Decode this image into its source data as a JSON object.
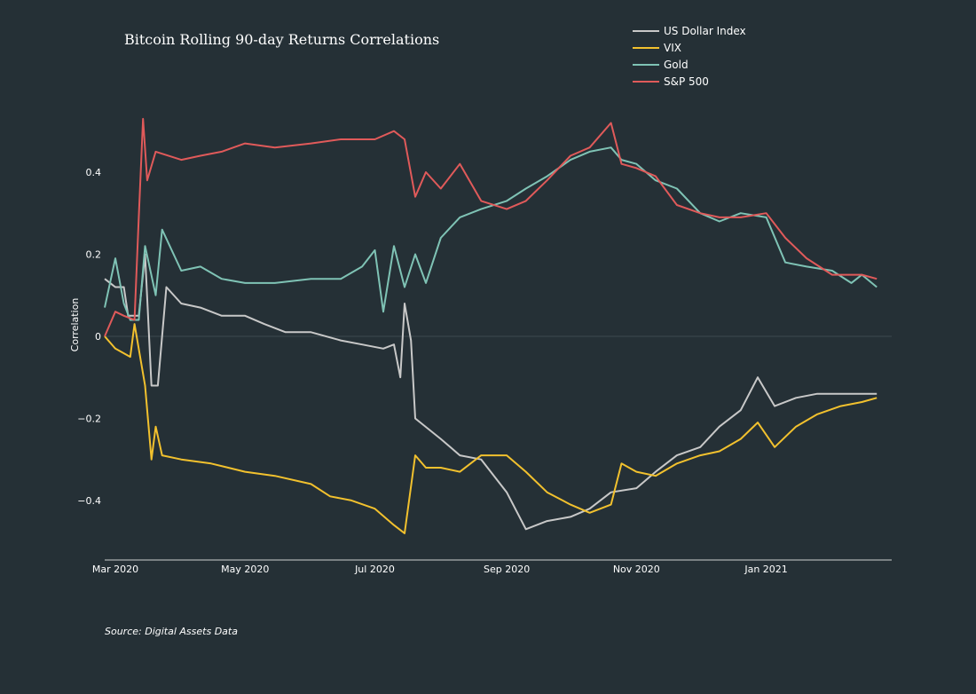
{
  "chart_data": {
    "type": "line",
    "title": "Bitcoin Rolling 90-day Returns Correlations",
    "xlabel": "",
    "ylabel": "Correlation",
    "xlim": [
      "2020-02-25",
      "2021-03-01"
    ],
    "ylim": [
      -0.545,
      0.56
    ],
    "x_ticks": [
      {
        "date": "2020-03-01",
        "label": "Mar 2020"
      },
      {
        "date": "2020-05-01",
        "label": "May 2020"
      },
      {
        "date": "2020-07-01",
        "label": "Jul 2020"
      },
      {
        "date": "2020-09-01",
        "label": "Sep 2020"
      },
      {
        "date": "2020-11-01",
        "label": "Nov 2020"
      },
      {
        "date": "2021-01-01",
        "label": "Jan 2021"
      }
    ],
    "y_ticks": [
      {
        "value": -0.4,
        "label": "−0.4"
      },
      {
        "value": -0.2,
        "label": "−0.2"
      },
      {
        "value": 0,
        "label": "0"
      },
      {
        "value": 0.2,
        "label": "0.2"
      },
      {
        "value": 0.4,
        "label": "0.4"
      }
    ],
    "legend_position": "top-right",
    "series": [
      {
        "name": "US Dollar Index",
        "color": "#c8c8c8",
        "points": [
          [
            "2020-02-25",
            0.14
          ],
          [
            "2020-03-01",
            0.12
          ],
          [
            "2020-03-05",
            0.12
          ],
          [
            "2020-03-07",
            0.05
          ],
          [
            "2020-03-12",
            0.05
          ],
          [
            "2020-03-15",
            0.2
          ],
          [
            "2020-03-18",
            -0.12
          ],
          [
            "2020-03-21",
            -0.12
          ],
          [
            "2020-03-25",
            0.12
          ],
          [
            "2020-04-01",
            0.08
          ],
          [
            "2020-04-10",
            0.07
          ],
          [
            "2020-04-20",
            0.05
          ],
          [
            "2020-05-01",
            0.05
          ],
          [
            "2020-05-10",
            0.03
          ],
          [
            "2020-05-20",
            0.01
          ],
          [
            "2020-06-01",
            0.01
          ],
          [
            "2020-06-15",
            -0.01
          ],
          [
            "2020-06-25",
            -0.02
          ],
          [
            "2020-07-05",
            -0.03
          ],
          [
            "2020-07-10",
            -0.02
          ],
          [
            "2020-07-13",
            -0.1
          ],
          [
            "2020-07-15",
            0.08
          ],
          [
            "2020-07-18",
            -0.01
          ],
          [
            "2020-07-20",
            -0.2
          ],
          [
            "2020-08-01",
            -0.25
          ],
          [
            "2020-08-10",
            -0.29
          ],
          [
            "2020-08-20",
            -0.3
          ],
          [
            "2020-09-01",
            -0.38
          ],
          [
            "2020-09-10",
            -0.47
          ],
          [
            "2020-09-20",
            -0.45
          ],
          [
            "2020-10-01",
            -0.44
          ],
          [
            "2020-10-10",
            -0.42
          ],
          [
            "2020-10-20",
            -0.38
          ],
          [
            "2020-11-01",
            -0.37
          ],
          [
            "2020-11-10",
            -0.33
          ],
          [
            "2020-11-20",
            -0.29
          ],
          [
            "2020-12-01",
            -0.27
          ],
          [
            "2020-12-10",
            -0.22
          ],
          [
            "2020-12-20",
            -0.18
          ],
          [
            "2020-12-28",
            -0.1
          ],
          [
            "2021-01-05",
            -0.17
          ],
          [
            "2021-01-15",
            -0.15
          ],
          [
            "2021-01-25",
            -0.14
          ],
          [
            "2021-02-05",
            -0.14
          ],
          [
            "2021-02-15",
            -0.14
          ],
          [
            "2021-02-22",
            -0.14
          ]
        ]
      },
      {
        "name": "VIX",
        "color": "#f2c12e",
        "points": [
          [
            "2020-02-25",
            0.0
          ],
          [
            "2020-03-01",
            -0.03
          ],
          [
            "2020-03-08",
            -0.05
          ],
          [
            "2020-03-10",
            0.03
          ],
          [
            "2020-03-15",
            -0.12
          ],
          [
            "2020-03-18",
            -0.3
          ],
          [
            "2020-03-20",
            -0.22
          ],
          [
            "2020-03-23",
            -0.29
          ],
          [
            "2020-04-01",
            -0.3
          ],
          [
            "2020-04-15",
            -0.31
          ],
          [
            "2020-05-01",
            -0.33
          ],
          [
            "2020-05-15",
            -0.34
          ],
          [
            "2020-06-01",
            -0.36
          ],
          [
            "2020-06-10",
            -0.39
          ],
          [
            "2020-06-20",
            -0.4
          ],
          [
            "2020-07-01",
            -0.42
          ],
          [
            "2020-07-10",
            -0.46
          ],
          [
            "2020-07-15",
            -0.48
          ],
          [
            "2020-07-20",
            -0.29
          ],
          [
            "2020-07-25",
            -0.32
          ],
          [
            "2020-08-01",
            -0.32
          ],
          [
            "2020-08-10",
            -0.33
          ],
          [
            "2020-08-20",
            -0.29
          ],
          [
            "2020-09-01",
            -0.29
          ],
          [
            "2020-09-10",
            -0.33
          ],
          [
            "2020-09-20",
            -0.38
          ],
          [
            "2020-10-01",
            -0.41
          ],
          [
            "2020-10-10",
            -0.43
          ],
          [
            "2020-10-20",
            -0.41
          ],
          [
            "2020-10-25",
            -0.31
          ],
          [
            "2020-11-01",
            -0.33
          ],
          [
            "2020-11-10",
            -0.34
          ],
          [
            "2020-11-20",
            -0.31
          ],
          [
            "2020-12-01",
            -0.29
          ],
          [
            "2020-12-10",
            -0.28
          ],
          [
            "2020-12-20",
            -0.25
          ],
          [
            "2020-12-28",
            -0.21
          ],
          [
            "2021-01-05",
            -0.27
          ],
          [
            "2021-01-15",
            -0.22
          ],
          [
            "2021-01-25",
            -0.19
          ],
          [
            "2021-02-05",
            -0.17
          ],
          [
            "2021-02-15",
            -0.16
          ],
          [
            "2021-02-22",
            -0.15
          ]
        ]
      },
      {
        "name": "Gold",
        "color": "#7fc3b5",
        "points": [
          [
            "2020-02-25",
            0.07
          ],
          [
            "2020-03-01",
            0.19
          ],
          [
            "2020-03-05",
            0.08
          ],
          [
            "2020-03-08",
            0.04
          ],
          [
            "2020-03-12",
            0.04
          ],
          [
            "2020-03-15",
            0.22
          ],
          [
            "2020-03-20",
            0.1
          ],
          [
            "2020-03-23",
            0.26
          ],
          [
            "2020-04-01",
            0.16
          ],
          [
            "2020-04-10",
            0.17
          ],
          [
            "2020-04-20",
            0.14
          ],
          [
            "2020-05-01",
            0.13
          ],
          [
            "2020-05-15",
            0.13
          ],
          [
            "2020-06-01",
            0.14
          ],
          [
            "2020-06-15",
            0.14
          ],
          [
            "2020-06-25",
            0.17
          ],
          [
            "2020-07-01",
            0.21
          ],
          [
            "2020-07-05",
            0.06
          ],
          [
            "2020-07-10",
            0.22
          ],
          [
            "2020-07-15",
            0.12
          ],
          [
            "2020-07-20",
            0.2
          ],
          [
            "2020-07-25",
            0.13
          ],
          [
            "2020-08-01",
            0.24
          ],
          [
            "2020-08-10",
            0.29
          ],
          [
            "2020-08-20",
            0.31
          ],
          [
            "2020-09-01",
            0.33
          ],
          [
            "2020-09-10",
            0.36
          ],
          [
            "2020-09-20",
            0.39
          ],
          [
            "2020-10-01",
            0.43
          ],
          [
            "2020-10-10",
            0.45
          ],
          [
            "2020-10-20",
            0.46
          ],
          [
            "2020-10-25",
            0.43
          ],
          [
            "2020-11-01",
            0.42
          ],
          [
            "2020-11-10",
            0.38
          ],
          [
            "2020-11-20",
            0.36
          ],
          [
            "2020-12-01",
            0.3
          ],
          [
            "2020-12-10",
            0.28
          ],
          [
            "2020-12-20",
            0.3
          ],
          [
            "2021-01-01",
            0.29
          ],
          [
            "2021-01-10",
            0.18
          ],
          [
            "2021-01-20",
            0.17
          ],
          [
            "2021-02-01",
            0.16
          ],
          [
            "2021-02-10",
            0.13
          ],
          [
            "2021-02-15",
            0.15
          ],
          [
            "2021-02-22",
            0.12
          ]
        ]
      },
      {
        "name": "S&P 500",
        "color": "#e05a5a",
        "points": [
          [
            "2020-02-25",
            0.0
          ],
          [
            "2020-03-01",
            0.06
          ],
          [
            "2020-03-05",
            0.05
          ],
          [
            "2020-03-10",
            0.04
          ],
          [
            "2020-03-12",
            0.29
          ],
          [
            "2020-03-14",
            0.53
          ],
          [
            "2020-03-16",
            0.38
          ],
          [
            "2020-03-20",
            0.45
          ],
          [
            "2020-04-01",
            0.43
          ],
          [
            "2020-04-10",
            0.44
          ],
          [
            "2020-04-20",
            0.45
          ],
          [
            "2020-05-01",
            0.47
          ],
          [
            "2020-05-15",
            0.46
          ],
          [
            "2020-06-01",
            0.47
          ],
          [
            "2020-06-15",
            0.48
          ],
          [
            "2020-07-01",
            0.48
          ],
          [
            "2020-07-10",
            0.5
          ],
          [
            "2020-07-15",
            0.48
          ],
          [
            "2020-07-20",
            0.34
          ],
          [
            "2020-07-25",
            0.4
          ],
          [
            "2020-08-01",
            0.36
          ],
          [
            "2020-08-10",
            0.42
          ],
          [
            "2020-08-20",
            0.33
          ],
          [
            "2020-09-01",
            0.31
          ],
          [
            "2020-09-10",
            0.33
          ],
          [
            "2020-09-20",
            0.38
          ],
          [
            "2020-10-01",
            0.44
          ],
          [
            "2020-10-10",
            0.46
          ],
          [
            "2020-10-20",
            0.52
          ],
          [
            "2020-10-25",
            0.42
          ],
          [
            "2020-11-01",
            0.41
          ],
          [
            "2020-11-10",
            0.39
          ],
          [
            "2020-11-20",
            0.32
          ],
          [
            "2020-12-01",
            0.3
          ],
          [
            "2020-12-10",
            0.29
          ],
          [
            "2020-12-20",
            0.29
          ],
          [
            "2021-01-01",
            0.3
          ],
          [
            "2021-01-10",
            0.24
          ],
          [
            "2021-01-20",
            0.19
          ],
          [
            "2021-02-01",
            0.15
          ],
          [
            "2021-02-10",
            0.15
          ],
          [
            "2021-02-15",
            0.15
          ],
          [
            "2021-02-22",
            0.14
          ]
        ]
      }
    ],
    "source": "Source: Digital Assets Data"
  }
}
